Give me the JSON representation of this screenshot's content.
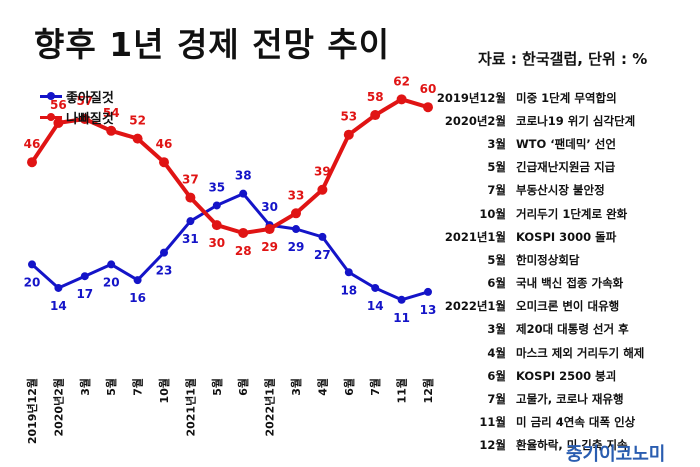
{
  "title": "향후 1년 경제 전망 추이",
  "source": "자료 : 한국갤럽, 단위 : %",
  "brand": "중기이코노미",
  "colors": {
    "good": "#1414c8",
    "bad": "#e01414"
  },
  "chart_data": {
    "type": "line",
    "categories": [
      "2019년12월",
      "2020년2월",
      "3월",
      "5월",
      "7월",
      "10월",
      "2021년1월",
      "5월",
      "6월",
      "2022년1월",
      "3월",
      "4월",
      "6월",
      "7월",
      "11월",
      "12월"
    ],
    "series": [
      {
        "name": "좋아질것",
        "values": [
          20,
          14,
          17,
          20,
          16,
          23,
          31,
          35,
          38,
          30,
          29,
          27,
          18,
          14,
          11,
          13
        ]
      },
      {
        "name": "나빠질것",
        "values": [
          46,
          56,
          57,
          54,
          52,
          46,
          37,
          30,
          28,
          29,
          33,
          39,
          53,
          58,
          62,
          60
        ]
      }
    ],
    "ylim": [
      0,
      70
    ],
    "grid": false,
    "legend": "top-left"
  },
  "events": [
    {
      "date": "2019년12월",
      "text": "미중 1단계 무역합의"
    },
    {
      "date": "2020년2월",
      "text": "코로나19 위기 심각단계"
    },
    {
      "date": "3월",
      "text": "WTO ‘팬데믹’ 선언"
    },
    {
      "date": "5월",
      "text": "긴급재난지원금 지급"
    },
    {
      "date": "7월",
      "text": "부동산시장 불안정"
    },
    {
      "date": "10월",
      "text": "거리두기 1단계로 완화"
    },
    {
      "date": "2021년1월",
      "text": "KOSPI 3000 돌파"
    },
    {
      "date": "5월",
      "text": "한미정상회담"
    },
    {
      "date": "6월",
      "text": "국내 백신 접종 가속화"
    },
    {
      "date": "2022년1월",
      "text": "오미크론 변이 대유행"
    },
    {
      "date": "3월",
      "text": "제20대 대통령 선거 후"
    },
    {
      "date": "4월",
      "text": "마스크 제외 거리두기 해제"
    },
    {
      "date": "6월",
      "text": "KOSPI 2500 붕괴"
    },
    {
      "date": "7월",
      "text": "고물가, 코로나 재유행"
    },
    {
      "date": "11월",
      "text": "미 금리 4연속 대폭 인상"
    },
    {
      "date": "12월",
      "text": "환율하락, 미 긴축 지속"
    }
  ]
}
